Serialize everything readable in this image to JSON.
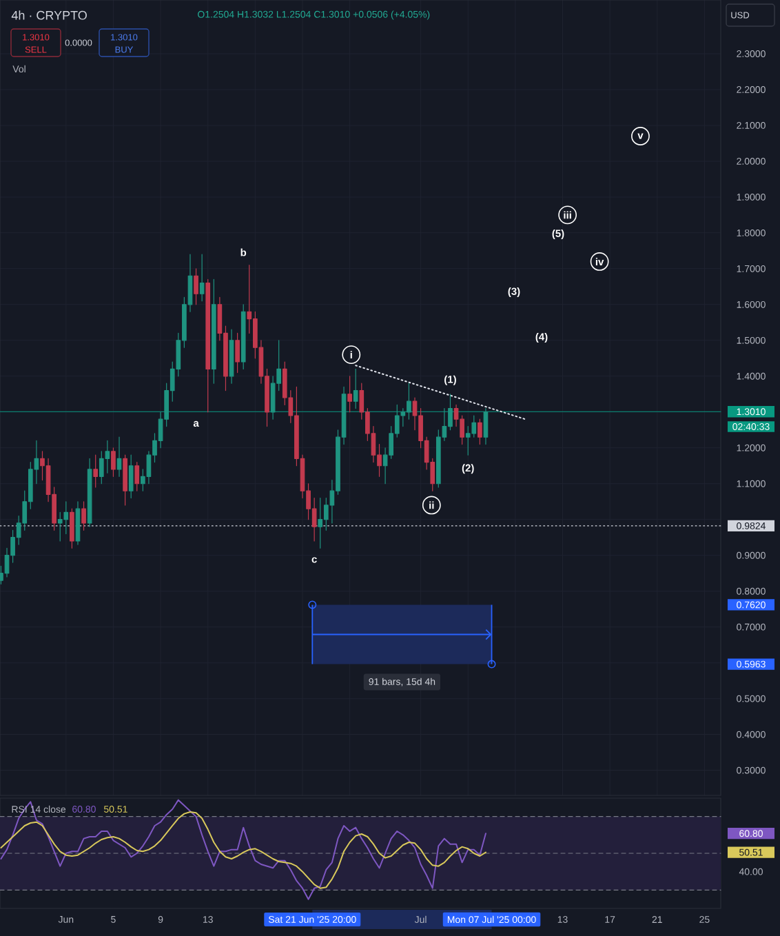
{
  "chart_data": [
    {
      "type": "candlestick",
      "title": "4h · CRYPTO",
      "subtitle": "O1.2504 H1.3032 L1.2504 C1.3010 +0.0506 (+4.05%)",
      "x": [
        "2025-05-26T12:00",
        "2025-05-27T00:00",
        "2025-05-27T12:00",
        "2025-05-28T00:00",
        "2025-05-28T12:00",
        "2025-05-29T00:00",
        "2025-05-29T12:00",
        "2025-05-30T00:00",
        "2025-05-30T12:00",
        "2025-05-31T00:00",
        "2025-05-31T12:00",
        "2025-06-01T00:00",
        "2025-06-01T12:00",
        "2025-06-02T00:00",
        "2025-06-02T12:00",
        "2025-06-03T00:00",
        "2025-06-03T12:00",
        "2025-06-04T00:00",
        "2025-06-04T12:00",
        "2025-06-05T00:00",
        "2025-06-05T12:00",
        "2025-06-06T00:00",
        "2025-06-06T12:00",
        "2025-06-07T00:00",
        "2025-06-07T12:00",
        "2025-06-08T00:00",
        "2025-06-08T12:00",
        "2025-06-09T00:00",
        "2025-06-09T12:00",
        "2025-06-10T00:00",
        "2025-06-10T12:00",
        "2025-06-11T00:00",
        "2025-06-11T12:00",
        "2025-06-12T00:00",
        "2025-06-12T12:00",
        "2025-06-13T00:00",
        "2025-06-13T12:00",
        "2025-06-14T00:00",
        "2025-06-14T12:00",
        "2025-06-15T00:00",
        "2025-06-15T12:00",
        "2025-06-16T00:00",
        "2025-06-16T12:00",
        "2025-06-17T00:00",
        "2025-06-17T12:00",
        "2025-06-18T00:00",
        "2025-06-18T12:00",
        "2025-06-19T00:00",
        "2025-06-19T12:00",
        "2025-06-20T00:00",
        "2025-06-20T12:00",
        "2025-06-21T00:00",
        "2025-06-21T12:00",
        "2025-06-22T00:00",
        "2025-06-22T12:00",
        "2025-06-23T00:00",
        "2025-06-23T12:00",
        "2025-06-24T00:00",
        "2025-06-24T12:00",
        "2025-06-25T00:00",
        "2025-06-25T12:00",
        "2025-06-26T00:00",
        "2025-06-26T12:00",
        "2025-06-27T00:00",
        "2025-06-27T12:00",
        "2025-06-28T00:00",
        "2025-06-28T12:00",
        "2025-06-29T00:00",
        "2025-06-29T12:00",
        "2025-06-30T00:00",
        "2025-06-30T12:00",
        "2025-07-01T00:00",
        "2025-07-01T12:00",
        "2025-07-02T00:00",
        "2025-07-02T12:00",
        "2025-07-03T00:00",
        "2025-07-03T12:00",
        "2025-07-04T00:00",
        "2025-07-04T12:00",
        "2025-07-05T00:00",
        "2025-07-05T12:00",
        "2025-07-06T00:00",
        "2025-07-06T12:00"
      ],
      "ohlc": [
        [
          0.83,
          0.87,
          0.82,
          0.85
        ],
        [
          0.85,
          0.92,
          0.84,
          0.9
        ],
        [
          0.9,
          0.97,
          0.88,
          0.95
        ],
        [
          0.95,
          1.01,
          0.93,
          0.99
        ],
        [
          0.99,
          1.08,
          0.97,
          1.05
        ],
        [
          1.05,
          1.16,
          1.03,
          1.14
        ],
        [
          1.14,
          1.22,
          1.1,
          1.17
        ],
        [
          1.17,
          1.19,
          1.11,
          1.15
        ],
        [
          1.15,
          1.17,
          1.05,
          1.07
        ],
        [
          1.07,
          1.09,
          0.97,
          0.99
        ],
        [
          0.99,
          1.02,
          0.94,
          1.0
        ],
        [
          1.0,
          1.05,
          0.96,
          1.02
        ],
        [
          1.02,
          1.03,
          0.92,
          0.94
        ],
        [
          0.94,
          1.05,
          0.93,
          1.03
        ],
        [
          1.03,
          1.05,
          0.97,
          0.99
        ],
        [
          0.99,
          1.17,
          0.98,
          1.14
        ],
        [
          1.14,
          1.18,
          1.09,
          1.12
        ],
        [
          1.12,
          1.19,
          1.1,
          1.17
        ],
        [
          1.17,
          1.22,
          1.13,
          1.19
        ],
        [
          1.19,
          1.2,
          1.12,
          1.14
        ],
        [
          1.14,
          1.23,
          1.12,
          1.17
        ],
        [
          1.17,
          1.18,
          1.04,
          1.08
        ],
        [
          1.08,
          1.18,
          1.06,
          1.15
        ],
        [
          1.15,
          1.16,
          1.08,
          1.1
        ],
        [
          1.1,
          1.14,
          1.08,
          1.12
        ],
        [
          1.12,
          1.19,
          1.1,
          1.18
        ],
        [
          1.18,
          1.24,
          1.16,
          1.22
        ],
        [
          1.22,
          1.3,
          1.2,
          1.28
        ],
        [
          1.28,
          1.38,
          1.26,
          1.36
        ],
        [
          1.36,
          1.44,
          1.33,
          1.42
        ],
        [
          1.42,
          1.52,
          1.4,
          1.5
        ],
        [
          1.5,
          1.62,
          1.48,
          1.6
        ],
        [
          1.6,
          1.74,
          1.58,
          1.68
        ],
        [
          1.68,
          1.7,
          1.6,
          1.63
        ],
        [
          1.63,
          1.74,
          1.61,
          1.66
        ],
        [
          1.66,
          1.67,
          1.3,
          1.42
        ],
        [
          1.42,
          1.67,
          1.38,
          1.6
        ],
        [
          1.6,
          1.62,
          1.5,
          1.52
        ],
        [
          1.52,
          1.54,
          1.36,
          1.4
        ],
        [
          1.4,
          1.53,
          1.38,
          1.5
        ],
        [
          1.5,
          1.52,
          1.41,
          1.44
        ],
        [
          1.44,
          1.6,
          1.42,
          1.58
        ],
        [
          1.58,
          1.71,
          1.52,
          1.56
        ],
        [
          1.56,
          1.58,
          1.45,
          1.48
        ],
        [
          1.48,
          1.5,
          1.38,
          1.4
        ],
        [
          1.4,
          1.42,
          1.26,
          1.3
        ],
        [
          1.3,
          1.4,
          1.28,
          1.38
        ],
        [
          1.38,
          1.5,
          1.36,
          1.42
        ],
        [
          1.42,
          1.44,
          1.32,
          1.34
        ],
        [
          1.34,
          1.36,
          1.27,
          1.29
        ],
        [
          1.29,
          1.37,
          1.15,
          1.17
        ],
        [
          1.17,
          1.18,
          1.06,
          1.08
        ],
        [
          1.08,
          1.1,
          1.0,
          1.03
        ],
        [
          1.03,
          1.06,
          0.94,
          0.98
        ],
        [
          0.98,
          1.06,
          0.92,
          1.0
        ],
        [
          1.0,
          1.06,
          0.97,
          1.04
        ],
        [
          1.04,
          1.11,
          0.99,
          1.08
        ],
        [
          1.08,
          1.25,
          1.07,
          1.23
        ],
        [
          1.23,
          1.37,
          1.21,
          1.35
        ],
        [
          1.35,
          1.4,
          1.3,
          1.33
        ],
        [
          1.33,
          1.42,
          1.31,
          1.36
        ],
        [
          1.36,
          1.38,
          1.28,
          1.3
        ],
        [
          1.3,
          1.31,
          1.22,
          1.24
        ],
        [
          1.24,
          1.26,
          1.16,
          1.18
        ],
        [
          1.18,
          1.21,
          1.12,
          1.15
        ],
        [
          1.15,
          1.2,
          1.1,
          1.18
        ],
        [
          1.18,
          1.26,
          1.17,
          1.24
        ],
        [
          1.24,
          1.32,
          1.23,
          1.29
        ],
        [
          1.29,
          1.31,
          1.26,
          1.3
        ],
        [
          1.3,
          1.38,
          1.28,
          1.33
        ],
        [
          1.33,
          1.34,
          1.25,
          1.29
        ],
        [
          1.29,
          1.31,
          1.2,
          1.22
        ],
        [
          1.22,
          1.23,
          1.14,
          1.16
        ],
        [
          1.16,
          1.17,
          1.08,
          1.1
        ],
        [
          1.1,
          1.25,
          1.09,
          1.23
        ],
        [
          1.23,
          1.31,
          1.22,
          1.26
        ],
        [
          1.26,
          1.35,
          1.25,
          1.31
        ],
        [
          1.31,
          1.32,
          1.26,
          1.28
        ],
        [
          1.28,
          1.29,
          1.21,
          1.23
        ],
        [
          1.23,
          1.26,
          1.18,
          1.24
        ],
        [
          1.24,
          1.29,
          1.23,
          1.27
        ],
        [
          1.27,
          1.28,
          1.21,
          1.23
        ],
        [
          1.23,
          1.31,
          1.21,
          1.3
        ]
      ],
      "colors": [
        "#1f9481",
        "#1f9481",
        "#1f9481",
        "#1f9481",
        "#1f9481",
        "#1f9481",
        "#1f9481",
        "#c23a4e",
        "#c23a4e",
        "#c23a4e",
        "#1f9481",
        "#1f9481",
        "#c23a4e",
        "#1f9481",
        "#c23a4e",
        "#1f9481",
        "#c23a4e",
        "#1f9481",
        "#1f9481",
        "#c23a4e",
        "#1f9481",
        "#c23a4e",
        "#1f9481",
        "#c23a4e",
        "#1f9481",
        "#1f9481",
        "#1f9481",
        "#1f9481",
        "#1f9481",
        "#1f9481",
        "#1f9481",
        "#1f9481",
        "#1f9481",
        "#c23a4e",
        "#1f9481",
        "#c23a4e",
        "#1f9481",
        "#c23a4e",
        "#c23a4e",
        "#1f9481",
        "#c23a4e",
        "#1f9481",
        "#c23a4e",
        "#c23a4e",
        "#c23a4e",
        "#c23a4e",
        "#1f9481",
        "#1f9481",
        "#c23a4e",
        "#c23a4e",
        "#c23a4e",
        "#c23a4e",
        "#c23a4e",
        "#c23a4e",
        "#1f9481",
        "#1f9481",
        "#1f9481",
        "#1f9481",
        "#1f9481",
        "#c23a4e",
        "#1f9481",
        "#c23a4e",
        "#c23a4e",
        "#c23a4e",
        "#c23a4e",
        "#1f9481",
        "#1f9481",
        "#1f9481",
        "#1f9481",
        "#1f9481",
        "#c23a4e",
        "#c23a4e",
        "#c23a4e",
        "#c23a4e",
        "#1f9481",
        "#1f9481",
        "#1f9481",
        "#c23a4e",
        "#c23a4e",
        "#1f9481",
        "#1f9481",
        "#c23a4e",
        "#1f9481"
      ],
      "series": [
        {
          "type": "line",
          "color": "#e0e3eb",
          "line_style": "dotted",
          "x": [
            "2025-06-25T12:00",
            "2025-07-09T20:00"
          ],
          "values": [
            1.43,
            1.28
          ]
        },
        {
          "type": "scatter",
          "name": "i",
          "marker": "circle",
          "color": "#ffffff",
          "x": [
            "2025-06-25T03:00"
          ],
          "values": [
            1.46
          ]
        },
        {
          "type": "scatter",
          "name": "ii",
          "marker": "circle",
          "color": "#ffffff",
          "x": [
            "2025-07-01T22:00"
          ],
          "values": [
            1.04
          ]
        },
        {
          "type": "scatter",
          "name": "iii",
          "marker": "circle",
          "color": "#ffffff",
          "x": [
            "2025-07-13T10:00"
          ],
          "values": [
            1.85
          ]
        },
        {
          "type": "scatter",
          "name": "iv",
          "marker": "circle",
          "color": "#ffffff",
          "x": [
            "2025-07-16T03:00"
          ],
          "values": [
            1.72
          ]
        },
        {
          "type": "scatter",
          "name": "v",
          "marker": "circle",
          "color": "#ffffff",
          "x": [
            "2025-07-19T14:00"
          ],
          "values": [
            2.07
          ]
        },
        {
          "type": "scatter",
          "marker": "circle",
          "color": "#2962ff",
          "x": [
            "2025-06-21T20:00",
            "2025-07-07T00:00"
          ],
          "values": [
            0.762,
            0.5963
          ]
        }
      ],
      "xlim": [
        "2025-05-26T10:00",
        "2025-07-26T09:00"
      ],
      "xticks": [
        {
          "value": "2025-06-01",
          "label": null
        },
        {
          "value": "2025-06-05",
          "label": null
        },
        {
          "value": "2025-06-09",
          "label": null
        },
        {
          "value": "2025-06-13",
          "label": null
        },
        {
          "value": "2025-06-17",
          "label": null
        },
        {
          "value": "2025-06-21",
          "label": null
        },
        {
          "value": "2025-06-25",
          "label": null
        },
        {
          "value": "2025-07-01",
          "label": null
        },
        {
          "value": "2025-07-05",
          "label": null
        },
        {
          "value": "2025-07-09",
          "label": null
        },
        {
          "value": "2025-07-13",
          "label": null
        },
        {
          "value": "2025-07-17",
          "label": null
        },
        {
          "value": "2025-07-21",
          "label": null
        },
        {
          "value": "2025-07-25",
          "label": null
        }
      ],
      "ylim": [
        0.23,
        2.45
      ],
      "yticks": [
        {
          "value": 0.3,
          "label": "0.3000"
        },
        {
          "value": 0.4,
          "label": "0.4000"
        },
        {
          "value": 0.5,
          "label": "0.5000"
        },
        {
          "value": 0.5963,
          "label": "0.5963"
        },
        {
          "value": 0.6,
          "label": null
        },
        {
          "value": 0.7,
          "label": "0.7000"
        },
        {
          "value": 0.762,
          "label": "0.7620"
        },
        {
          "value": 0.8,
          "label": "0.8000"
        },
        {
          "value": 0.9,
          "label": "0.9000"
        },
        {
          "value": 1.0,
          "label": null
        },
        {
          "value": 1.1,
          "label": "1.1000"
        },
        {
          "value": 1.2,
          "label": "1.2000"
        },
        {
          "value": 1.3,
          "label": null
        },
        {
          "value": 1.4,
          "label": "1.4000"
        },
        {
          "value": 1.5,
          "label": "1.5000"
        },
        {
          "value": 1.6,
          "label": "1.6000"
        },
        {
          "value": 1.7,
          "label": "1.7000"
        },
        {
          "value": 1.8,
          "label": "1.8000"
        },
        {
          "value": 1.9,
          "label": "1.9000"
        },
        {
          "value": 2.0,
          "label": "2.0000"
        },
        {
          "value": 2.1,
          "label": "2.1000"
        },
        {
          "value": 2.2,
          "label": "2.2000"
        },
        {
          "value": 2.3,
          "label": "2.3000"
        }
      ],
      "grid": true,
      "tick_labels": "y",
      "ref_lines": [
        {
          "axis": "y",
          "value": 1.301,
          "label": "1.3010",
          "color": "#089981",
          "line_style": "solid"
        },
        {
          "axis": "y",
          "value": 0.9824,
          "label": "0.9824",
          "color": "#d1d4dc",
          "line_style": "dotted"
        }
      ],
      "bands": [
        {
          "axis": "x",
          "from": "2025-06-21T20:00",
          "to": "2025-07-07T00:00",
          "label": "91 bars, 15d 4h",
          "color": "#1c2a5a"
        }
      ],
      "annotations": [
        "1.3010",
        "SELL",
        "0.0000",
        "1.3010",
        "BUY",
        "Vol",
        "USD",
        "02:40:33",
        "(3)",
        "(4)",
        "(5)",
        {
          "text": "a",
          "x": "2025-06-12T00:00",
          "y": 1.3
        },
        {
          "text": "b",
          "x": "2025-06-16T00:00",
          "y": 1.71
        },
        {
          "text": "c",
          "x": "2025-06-22T00:00",
          "y": 0.92
        },
        {
          "text": "(1)",
          "x": "2025-07-03T12:00",
          "y": 1.35
        },
        {
          "text": "(2)",
          "x": "2025-07-05T00:00",
          "y": 1.18
        }
      ]
    },
    {
      "type": "line",
      "title": "RSI 14 close",
      "x": [
        "2025-05-26T12:00",
        "2025-05-27T00:00",
        "2025-05-27T12:00",
        "2025-05-28T00:00",
        "2025-05-28T12:00",
        "2025-05-29T00:00",
        "2025-05-29T12:00",
        "2025-05-30T00:00",
        "2025-05-30T12:00",
        "2025-05-31T00:00",
        "2025-05-31T12:00",
        "2025-06-01T00:00",
        "2025-06-01T12:00",
        "2025-06-02T00:00",
        "2025-06-02T12:00",
        "2025-06-03T00:00",
        "2025-06-03T12:00",
        "2025-06-04T00:00",
        "2025-06-04T12:00",
        "2025-06-05T00:00",
        "2025-06-05T12:00",
        "2025-06-06T00:00",
        "2025-06-06T12:00",
        "2025-06-07T00:00",
        "2025-06-07T12:00",
        "2025-06-08T00:00",
        "2025-06-08T12:00",
        "2025-06-09T00:00",
        "2025-06-09T12:00",
        "2025-06-10T00:00",
        "2025-06-10T12:00",
        "2025-06-11T00:00",
        "2025-06-11T12:00",
        "2025-06-12T00:00",
        "2025-06-12T12:00",
        "2025-06-13T00:00",
        "2025-06-13T12:00",
        "2025-06-14T00:00",
        "2025-06-14T12:00",
        "2025-06-15T00:00",
        "2025-06-15T12:00",
        "2025-06-16T00:00",
        "2025-06-16T12:00",
        "2025-06-17T00:00",
        "2025-06-17T12:00",
        "2025-06-18T00:00",
        "2025-06-18T12:00",
        "2025-06-19T00:00",
        "2025-06-19T12:00",
        "2025-06-20T00:00",
        "2025-06-20T12:00",
        "2025-06-21T00:00",
        "2025-06-21T12:00",
        "2025-06-22T00:00",
        "2025-06-22T12:00",
        "2025-06-23T00:00",
        "2025-06-23T12:00",
        "2025-06-24T00:00",
        "2025-06-24T12:00",
        "2025-06-25T00:00",
        "2025-06-25T12:00",
        "2025-06-26T00:00",
        "2025-06-26T12:00",
        "2025-06-27T00:00",
        "2025-06-27T12:00",
        "2025-06-28T00:00",
        "2025-06-28T12:00",
        "2025-06-29T00:00",
        "2025-06-29T12:00",
        "2025-06-30T00:00",
        "2025-06-30T12:00",
        "2025-07-01T00:00",
        "2025-07-01T12:00",
        "2025-07-02T00:00",
        "2025-07-02T12:00",
        "2025-07-03T00:00",
        "2025-07-03T12:00",
        "2025-07-04T00:00",
        "2025-07-04T12:00",
        "2025-07-05T00:00",
        "2025-07-05T12:00",
        "2025-07-06T00:00",
        "2025-07-06T12:00"
      ],
      "series": [
        {
          "color": "#7e57c2",
          "values": [
            47,
            52,
            60,
            69,
            74,
            78,
            68,
            66,
            59,
            51,
            43,
            50,
            51,
            51,
            58,
            59,
            59,
            62,
            62,
            57,
            55,
            53,
            48,
            50,
            54,
            59,
            65,
            67,
            71,
            74,
            79,
            76,
            73,
            70,
            60,
            51,
            43,
            51,
            51,
            52,
            52,
            64,
            54,
            46,
            44,
            43,
            42,
            46,
            46,
            41,
            35,
            31,
            25,
            31,
            32,
            41,
            45,
            58,
            65,
            62,
            64,
            58,
            53,
            47,
            42,
            50,
            58,
            62,
            60,
            57,
            53,
            44,
            38,
            31,
            54,
            58,
            55,
            55,
            45,
            52,
            52,
            49,
            60.8
          ]
        },
        {
          "color": "#d9c95b",
          "values": [
            53,
            56,
            59,
            62,
            65,
            66.5,
            67,
            65,
            60,
            55,
            51,
            49,
            48.5,
            49,
            51,
            53,
            55.5,
            57.5,
            58.5,
            59,
            58,
            56,
            53.5,
            51.5,
            51,
            52,
            54,
            57,
            61,
            65,
            69,
            71.5,
            72.5,
            72,
            69,
            63,
            56,
            51,
            48,
            47,
            48.5,
            50.5,
            52,
            52.5,
            51,
            49,
            47,
            45.5,
            45,
            44.5,
            43,
            40,
            36.5,
            33,
            31,
            31.5,
            36,
            42,
            51,
            56,
            59.5,
            60.5,
            59,
            55,
            50,
            47.5,
            48.5,
            51.5,
            54.5,
            56,
            55.5,
            52,
            47,
            43.5,
            43,
            45,
            48.5,
            51.5,
            53.5,
            52.5,
            50,
            48.5,
            50.51
          ]
        }
      ],
      "xlim": [
        "2025-05-26T10:00",
        "2025-07-26T09:00"
      ],
      "xticks": [
        {
          "value": "2025-06-01",
          "label": "Jun"
        },
        {
          "value": "2025-06-05",
          "label": "5"
        },
        {
          "value": "2025-06-09",
          "label": "9"
        },
        {
          "value": "2025-06-13",
          "label": "13"
        },
        {
          "value": "2025-06-21T20:00",
          "label": "Sat 21 Jun '25 20:00"
        },
        {
          "value": "2025-07-01",
          "label": "Jul"
        },
        {
          "value": "2025-07-07T00:00",
          "label": "Mon 07 Jul '25 00:00"
        },
        {
          "value": "2025-07-13",
          "label": "13"
        },
        {
          "value": "2025-07-17",
          "label": "17"
        },
        {
          "value": "2025-07-21",
          "label": "21"
        },
        {
          "value": "2025-07-25",
          "label": "25"
        }
      ],
      "ylim": [
        20,
        80
      ],
      "yticks": [
        {
          "value": 40,
          "label": "40.00"
        },
        {
          "value": 50.51,
          "label": "50.51"
        },
        {
          "value": 60.8,
          "label": "60.80"
        }
      ],
      "ref_lines": [
        {
          "axis": "y",
          "value": 70,
          "color": "#787b86",
          "line_style": "dashed"
        },
        {
          "axis": "y",
          "value": 50,
          "color": "#787b86",
          "line_style": "dashed"
        },
        {
          "axis": "y",
          "value": 30,
          "color": "#787b86",
          "line_style": "dashed"
        }
      ],
      "bands": [
        {
          "axis": "y",
          "from": 30,
          "to": 70,
          "color": "#231f3b"
        }
      ],
      "annotations": [
        "60.80",
        "50.51"
      ]
    }
  ]
}
